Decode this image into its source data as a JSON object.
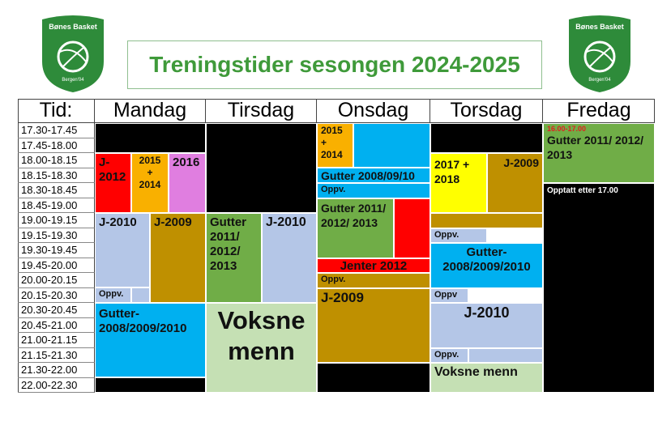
{
  "logos": [
    {
      "name": "Bønes Basket",
      "sub": "Bergen'04"
    },
    {
      "name": "Bønes Basket",
      "sub": "Bergen'04"
    }
  ],
  "title": "Treningstider sesongen 2024-2025",
  "table": {
    "headers": [
      "Tid:",
      "Mandag",
      "Tirsdag",
      "Onsdag",
      "Torsdag",
      "Fredag"
    ],
    "times": [
      "17.30-17.45",
      "17.45-18.00",
      "18.00-18.15",
      "18.15-18.30",
      "18.30-18.45",
      "18.45-19.00",
      "19.00-19.15",
      "19.15-19.30",
      "19.30-19.45",
      "19.45-20.00",
      "20.00-20.15",
      "20.15-20.30",
      "20.30-20.45",
      "20.45-21.00",
      "21.00-21.15",
      "21.15-21.30",
      "21.30-22.00",
      "22.00-22.30"
    ],
    "mandag": [
      "J-2012",
      "2015 + 2014",
      "2016",
      "J-2010",
      "J-2009",
      "Oppv.",
      "Gutter-2008/2009/2010"
    ],
    "tirsdag": [
      "Gutter 2011/ 2012/ 2013",
      "J-2010",
      "Voksne menn"
    ],
    "onsdag": [
      "2015 + 2014",
      "Gutter 2008/09/10",
      "Oppv.",
      "Gutter 2011/ 2012/ 2013",
      "Jenter 2012",
      "Oppv.",
      "J-2009"
    ],
    "torsdag": [
      "2017 + 2018",
      "J-2009",
      "Oppv.",
      "Gutter-2008/2009/2010",
      "Oppv",
      "J-2010",
      "Oppv.",
      "Voksne menn"
    ],
    "fredag": [
      "16.00-17.00",
      "Gutter 2011/ 2012/ 2013",
      "Opptatt etter 17.00"
    ]
  }
}
